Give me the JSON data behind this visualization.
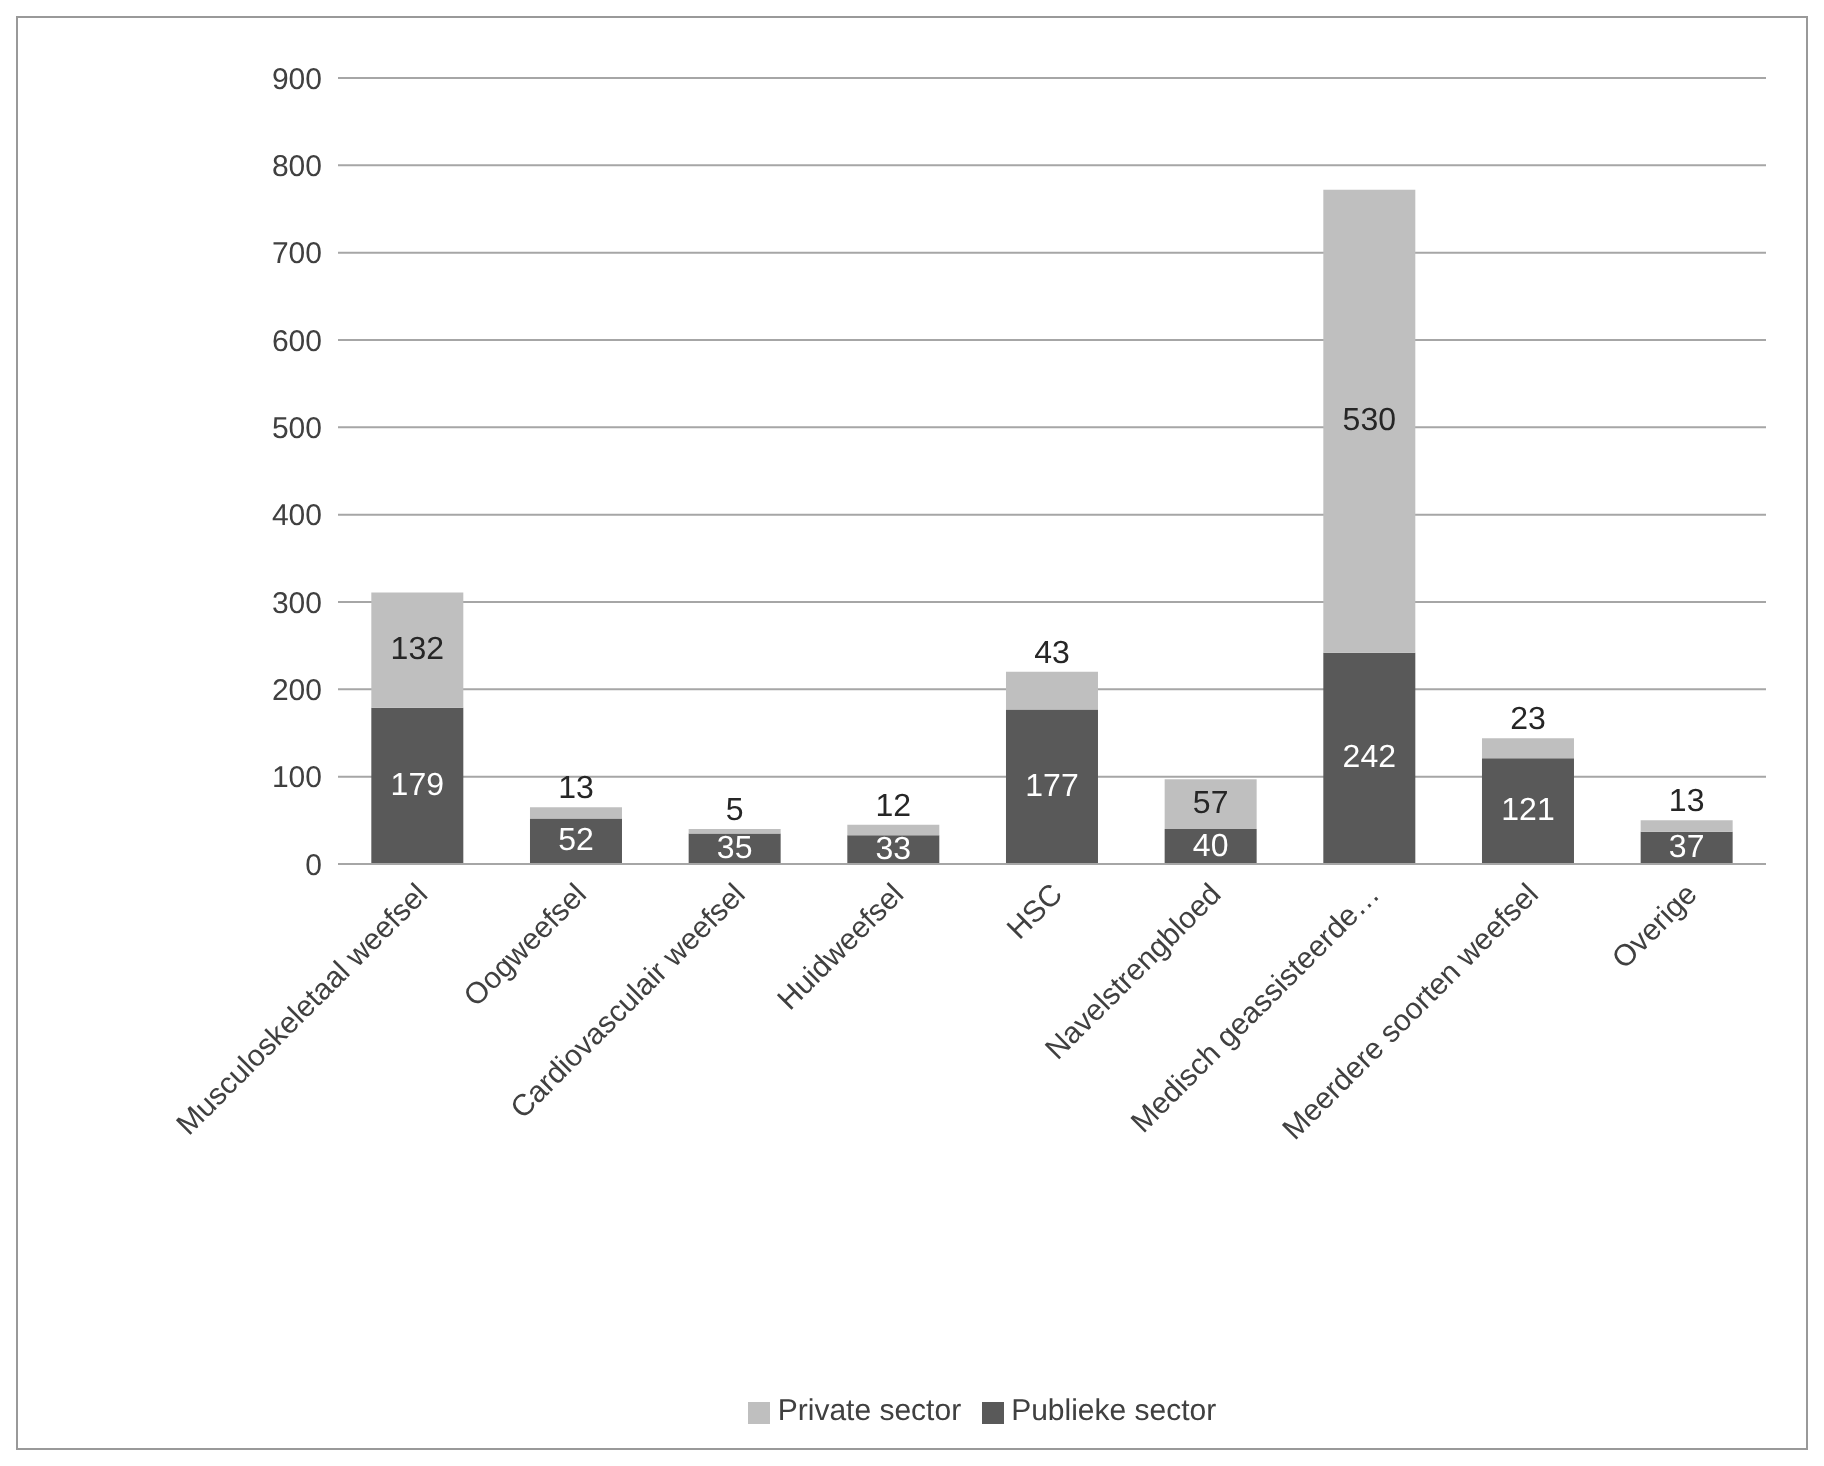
{
  "chart_data": {
    "type": "bar",
    "stacked": true,
    "categories": [
      "Musculoskeletaal weefsel",
      "Oogweefsel",
      "Cardiovasculair weefsel",
      "Huidweefsel",
      "HSC",
      "Navelstrengbloed",
      "Medisch geassisteerde…",
      "Meerdere soorten weefsel",
      "Overige"
    ],
    "series": [
      {
        "name": "Publieke sector",
        "color": "#595959",
        "values": [
          179,
          52,
          35,
          33,
          177,
          40,
          242,
          121,
          37
        ]
      },
      {
        "name": "Private sector",
        "color": "#bfbfbf",
        "values": [
          132,
          13,
          5,
          12,
          43,
          57,
          530,
          23,
          13
        ]
      }
    ],
    "ylim": [
      0,
      900
    ],
    "yticks": [
      0,
      100,
      200,
      300,
      400,
      500,
      600,
      700,
      800,
      900
    ],
    "grid": "y",
    "legend": "bottom",
    "data_labels": true
  }
}
